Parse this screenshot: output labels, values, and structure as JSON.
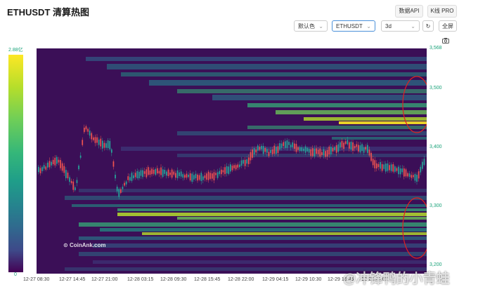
{
  "header": {
    "title": "ETHUSDT 清算热图",
    "data_api_label": "数据API",
    "kline_pro_label": "K线 PRO"
  },
  "controls": {
    "color_select": "默认色",
    "symbol_select": "ETHUSDT",
    "range_select": "3d",
    "refresh_icon": "↻",
    "fullscreen_label": "全屏"
  },
  "colors": {
    "plot_bg": "#3b0f57",
    "candle_up": "#26a69a",
    "candle_down": "#ef5350",
    "annotation": "#e02020",
    "axis_text": "#1aa37a"
  },
  "color_scale": {
    "max_label": "2.88亿",
    "min_label": "0"
  },
  "y_axis": {
    "ticks": [
      "3,568",
      "3,500",
      "3,400",
      "3,300",
      "3,200"
    ]
  },
  "x_axis": {
    "ticks": [
      "12-27 08:30",
      "12-27 14:45",
      "12-27 21:00",
      "12-28 03:15",
      "12-28 09:30",
      "12-28 15:45",
      "12-28 22:00",
      "12-29 04:15",
      "12-29 10:30",
      "12-29 16:45",
      "12-29 23:00"
    ]
  },
  "watermark": {
    "brand": "CoinAnk.com",
    "overlay": "@冲锋鸭的小青蛙"
  }
}
